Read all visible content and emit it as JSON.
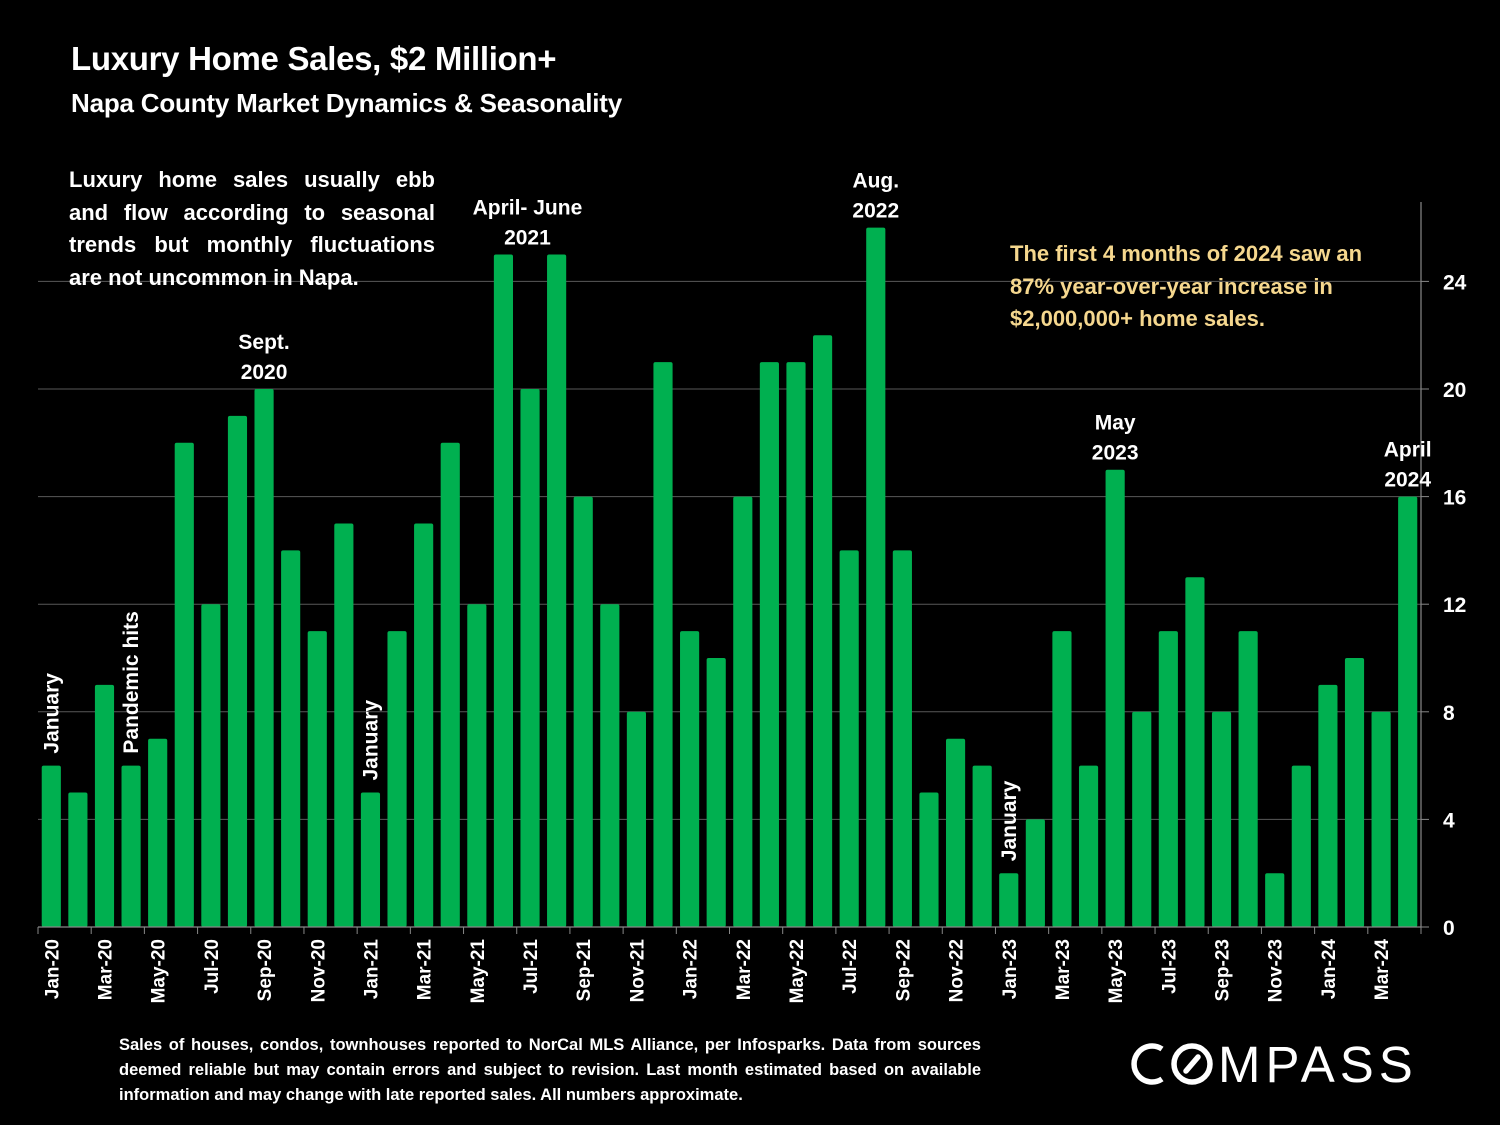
{
  "header": {
    "title": "Luxury Home Sales, $2 Million+",
    "subtitle": "Napa County Market Dynamics & Seasonality"
  },
  "notes": {
    "left": "Luxury home sales usually ebb and flow according to seasonal trends but monthly fluctuations are not uncommon in Napa.",
    "right": "The first 4 months of 2024 saw an 87% year-over-year increase in $2,000,000+ home sales."
  },
  "footer": "Sales of houses, condos, townhouses reported to NorCal MLS Alliance, per Infosparks. Data from sources deemed reliable but may contain errors and subject to revision. Last month estimated based on available information and may change with late reported sales. All numbers approximate.",
  "logo": {
    "text": "COMPASS",
    "icon": "compass-o-icon"
  },
  "colors": {
    "bar": "#00B050",
    "background": "#000000",
    "highlight_text": "#F5D78E",
    "text": "#FFFFFF",
    "grid": "#595959"
  },
  "chart_data": {
    "type": "bar",
    "title": "Luxury Home Sales, $2 Million+",
    "subtitle": "Napa County Market Dynamics & Seasonality",
    "xlabel": "",
    "ylabel": "",
    "ylim": [
      0,
      27
    ],
    "yticks": [
      0,
      4,
      8,
      12,
      16,
      20,
      24
    ],
    "y_axis_position": "right",
    "grid": true,
    "legend": "none",
    "categories": [
      "Jan-20",
      "Feb-20",
      "Mar-20",
      "Apr-20",
      "May-20",
      "Jun-20",
      "Jul-20",
      "Aug-20",
      "Sep-20",
      "Oct-20",
      "Nov-20",
      "Dec-20",
      "Jan-21",
      "Feb-21",
      "Mar-21",
      "Apr-21",
      "May-21",
      "Jun-21",
      "Jul-21",
      "Aug-21",
      "Sep-21",
      "Oct-21",
      "Nov-21",
      "Dec-21",
      "Jan-22",
      "Feb-22",
      "Mar-22",
      "Apr-22",
      "May-22",
      "Jun-22",
      "Jul-22",
      "Aug-22",
      "Sep-22",
      "Oct-22",
      "Nov-22",
      "Dec-22",
      "Jan-23",
      "Feb-23",
      "Mar-23",
      "Apr-23",
      "May-23",
      "Jun-23",
      "Jul-23",
      "Aug-23",
      "Sep-23",
      "Oct-23",
      "Nov-23",
      "Dec-23",
      "Jan-24",
      "Feb-24",
      "Mar-24",
      "Apr-24"
    ],
    "tick_labels": [
      "Jan-20",
      "Mar-20",
      "May-20",
      "Jul-20",
      "Sep-20",
      "Nov-20",
      "Jan-21",
      "Mar-21",
      "May-21",
      "Jul-21",
      "Sep-21",
      "Nov-21",
      "Jan-22",
      "Mar-22",
      "May-22",
      "Jul-22",
      "Sep-22",
      "Nov-22",
      "Jan-23",
      "Mar-23",
      "May-23",
      "Jul-23",
      "Sep-23",
      "Nov-23",
      "Jan-24",
      "Mar-24"
    ],
    "series": [
      {
        "name": "$2M+ home sales",
        "values": [
          6,
          5,
          9,
          6,
          7,
          18,
          12,
          19,
          20,
          14,
          11,
          15,
          5,
          11,
          15,
          18,
          12,
          25,
          20,
          25,
          16,
          12,
          8,
          21,
          11,
          10,
          16,
          21,
          21,
          22,
          14,
          26,
          14,
          5,
          7,
          6,
          2,
          4,
          11,
          6,
          17,
          8,
          11,
          13,
          8,
          11,
          2,
          6,
          9,
          10,
          8,
          16
        ]
      }
    ],
    "annotations": [
      {
        "text": "January",
        "category": "Jan-20",
        "orientation": "vertical"
      },
      {
        "text": "Pandemic hits",
        "category": "Apr-20",
        "orientation": "vertical"
      },
      {
        "text": "Sept. 2020",
        "category": "Sep-20",
        "orientation": "horizontal"
      },
      {
        "text": "January",
        "category": "Jan-21",
        "orientation": "vertical"
      },
      {
        "text": "April- June 2021",
        "category": "Jun-21",
        "orientation": "horizontal"
      },
      {
        "text": "Aug. 2022",
        "category": "Aug-22",
        "orientation": "horizontal"
      },
      {
        "text": "January",
        "category": "Jan-23",
        "orientation": "vertical"
      },
      {
        "text": "May 2023",
        "category": "May-23",
        "orientation": "horizontal"
      },
      {
        "text": "April 2024",
        "category": "Apr-24",
        "orientation": "horizontal"
      }
    ]
  }
}
